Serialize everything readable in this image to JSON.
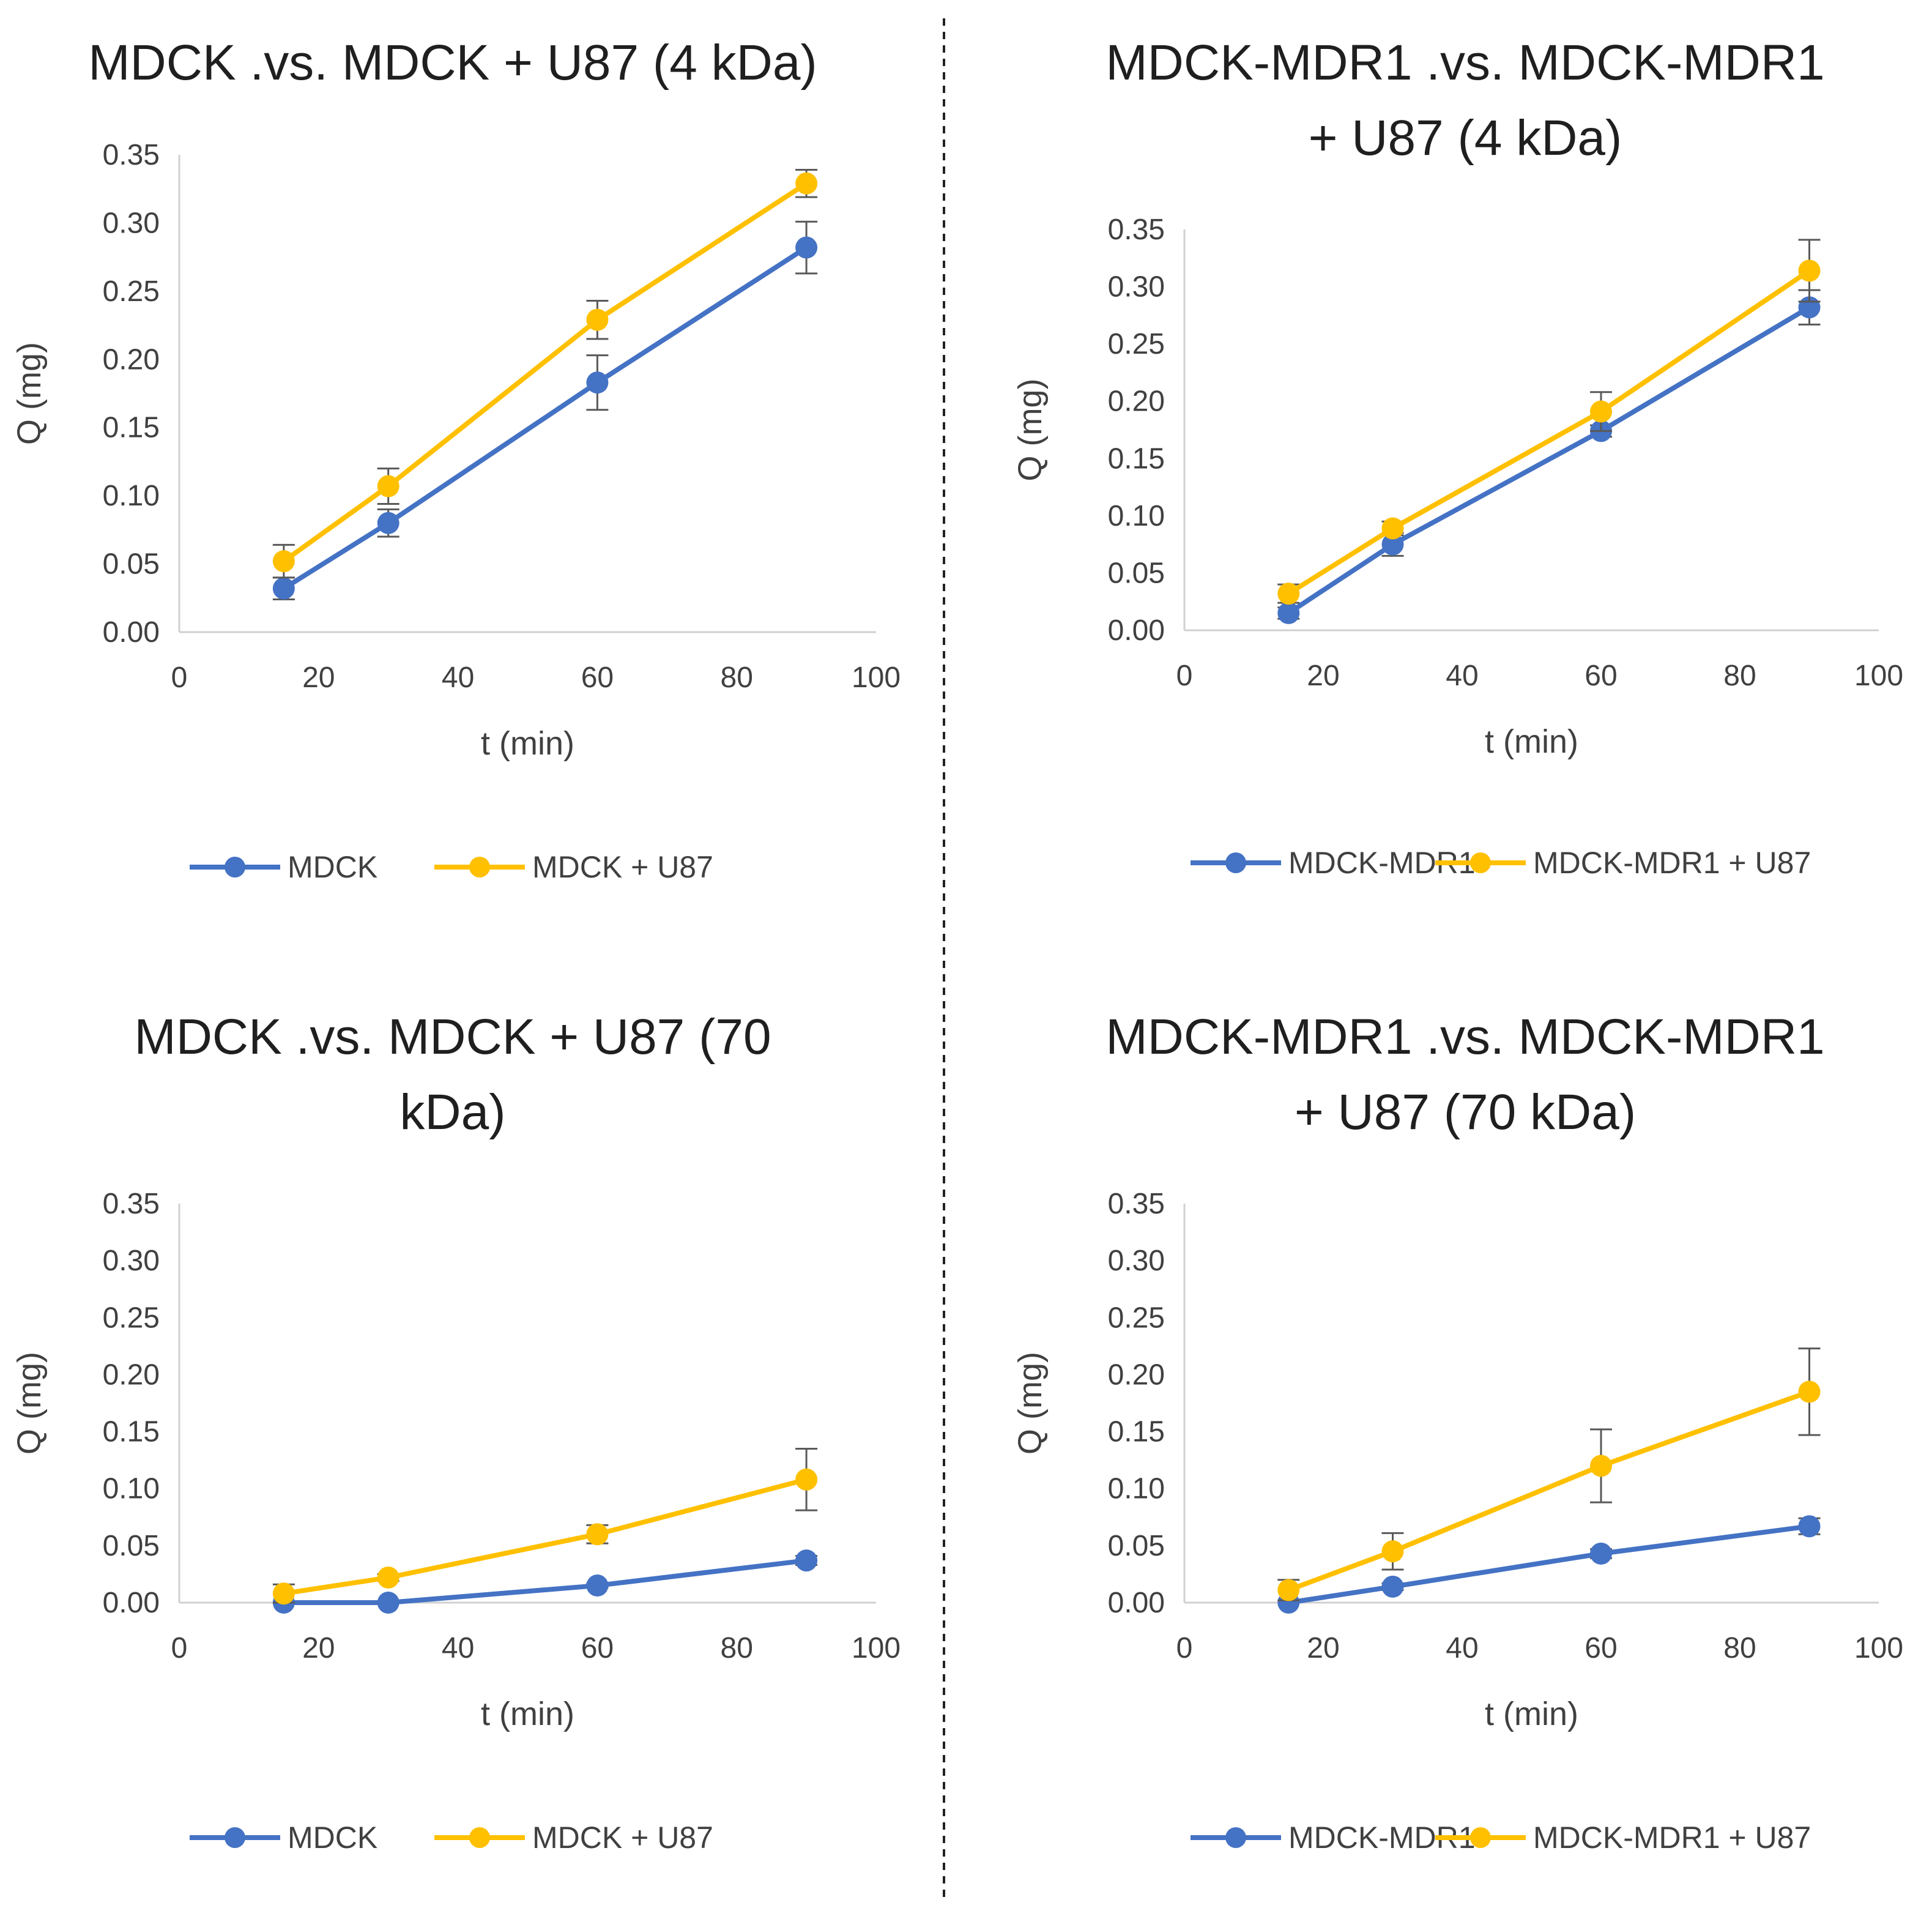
{
  "chart_data": [
    {
      "type": "line",
      "title_lines": [
        "MDCK .vs. MDCK + U87 (4 kDa)"
      ],
      "xlabel": "t (min)",
      "ylabel": "Q (mg)",
      "xlim": [
        0,
        100
      ],
      "ylim": [
        0,
        0.35
      ],
      "xticks": [
        "0",
        "20",
        "40",
        "60",
        "80",
        "100"
      ],
      "yticks": [
        "0.00",
        "0.05",
        "0.10",
        "0.15",
        "0.20",
        "0.25",
        "0.30",
        "0.35"
      ],
      "x": [
        15,
        30,
        60,
        90
      ],
      "series": [
        {
          "name": "MDCK",
          "color": "#4472c4",
          "values": [
            0.032,
            0.08,
            0.183,
            0.282
          ],
          "errors": [
            0.008,
            0.01,
            0.02,
            0.019
          ]
        },
        {
          "name": "MDCK + U87",
          "color": "#ffc000",
          "values": [
            0.052,
            0.107,
            0.229,
            0.329
          ],
          "errors": [
            0.012,
            0.013,
            0.014,
            0.01
          ]
        }
      ]
    },
    {
      "type": "line",
      "title_lines": [
        "MDCK-MDR1 .vs. MDCK-MDR1",
        "+ U87 (4 kDa)"
      ],
      "xlabel": "t (min)",
      "ylabel": "Q (mg)",
      "xlim": [
        0,
        100
      ],
      "ylim": [
        0,
        0.35
      ],
      "xticks": [
        "0",
        "20",
        "40",
        "60",
        "80",
        "100"
      ],
      "yticks": [
        "0.00",
        "0.05",
        "0.10",
        "0.15",
        "0.20",
        "0.25",
        "0.30",
        "0.35"
      ],
      "x": [
        15,
        30,
        60,
        90
      ],
      "series": [
        {
          "name": "MDCK-MDR1",
          "color": "#4472c4",
          "values": [
            0.015,
            0.075,
            0.174,
            0.282
          ],
          "errors": [
            0.005,
            0.01,
            0.005,
            0.015
          ]
        },
        {
          "name": "MDCK-MDR1 + U87",
          "color": "#ffc000",
          "values": [
            0.032,
            0.089,
            0.191,
            0.314
          ],
          "errors": [
            0.008,
            0.006,
            0.017,
            0.027
          ]
        }
      ]
    },
    {
      "type": "line",
      "title_lines": [
        "MDCK .vs. MDCK + U87 (70",
        "kDa)"
      ],
      "xlabel": "t (min)",
      "ylabel": "Q (mg)",
      "xlim": [
        0,
        100
      ],
      "ylim": [
        0,
        0.35
      ],
      "xticks": [
        "0",
        "20",
        "40",
        "60",
        "80",
        "100"
      ],
      "yticks": [
        "0.00",
        "0.05",
        "0.10",
        "0.15",
        "0.20",
        "0.25",
        "0.30",
        "0.35"
      ],
      "x": [
        15,
        30,
        60,
        90
      ],
      "series": [
        {
          "name": "MDCK",
          "color": "#4472c4",
          "values": [
            0.0,
            0.0,
            0.015,
            0.037
          ],
          "errors": [
            0,
            0,
            0.002,
            0.004
          ]
        },
        {
          "name": "MDCK + U87",
          "color": "#ffc000",
          "values": [
            0.008,
            0.022,
            0.06,
            0.108
          ],
          "errors": [
            0.008,
            0.003,
            0.008,
            0.027
          ]
        }
      ]
    },
    {
      "type": "line",
      "title_lines": [
        "MDCK-MDR1 .vs. MDCK-MDR1",
        "+ U87 (70 kDa)"
      ],
      "xlabel": "t (min)",
      "ylabel": "Q (mg)",
      "xlim": [
        0,
        100
      ],
      "ylim": [
        0,
        0.35
      ],
      "xticks": [
        "0",
        "20",
        "40",
        "60",
        "80",
        "100"
      ],
      "yticks": [
        "0.00",
        "0.05",
        "0.10",
        "0.15",
        "0.20",
        "0.25",
        "0.30",
        "0.35"
      ],
      "x": [
        15,
        30,
        60,
        90
      ],
      "series": [
        {
          "name": "MDCK-MDR1",
          "color": "#4472c4",
          "values": [
            0.0,
            0.014,
            0.043,
            0.067
          ],
          "errors": [
            0,
            0.003,
            0.004,
            0.007
          ]
        },
        {
          "name": "MDCK-MDR1 + U87",
          "color": "#ffc000",
          "values": [
            0.011,
            0.045,
            0.12,
            0.185
          ],
          "errors": [
            0.009,
            0.016,
            0.032,
            0.038
          ]
        }
      ]
    }
  ]
}
